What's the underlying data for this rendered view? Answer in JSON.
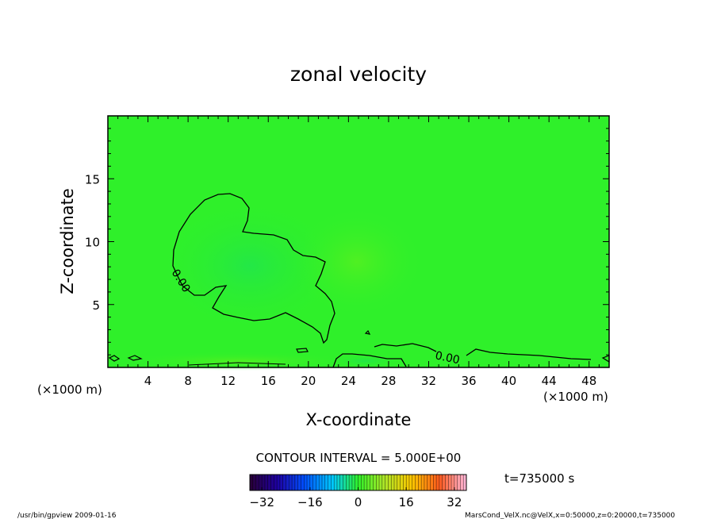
{
  "chart_data": {
    "type": "heatmap",
    "title": "zonal velocity",
    "xlabel": "X-coordinate",
    "ylabel": "Z-coordinate",
    "x_unit": "(×1000 m)",
    "y_unit": "(×1000 m)",
    "xlim": [
      0,
      50
    ],
    "ylim": [
      0,
      20
    ],
    "x_ticks": [
      "4",
      "8",
      "12",
      "16",
      "20",
      "24",
      "28",
      "32",
      "36",
      "40",
      "44",
      "48"
    ],
    "y_ticks": [
      "5",
      "10",
      "15"
    ],
    "contour_interval_label": "CONTOUR INTERVAL = 5.000E+00",
    "contour_labels": [
      "0.00",
      "0.00"
    ],
    "colorbar": {
      "ticks": [
        "-32",
        "-16",
        "0",
        "16",
        "32"
      ],
      "range": [
        -36,
        36
      ]
    },
    "time_label": "t=735000 s",
    "background_field_color": "#2ff02a"
  },
  "footer": {
    "left": "/usr/bin/gpview   2009-01-16",
    "right": "MarsCond_VelX.nc@VelX,x=0:50000,z=0:20000,t=735000"
  }
}
